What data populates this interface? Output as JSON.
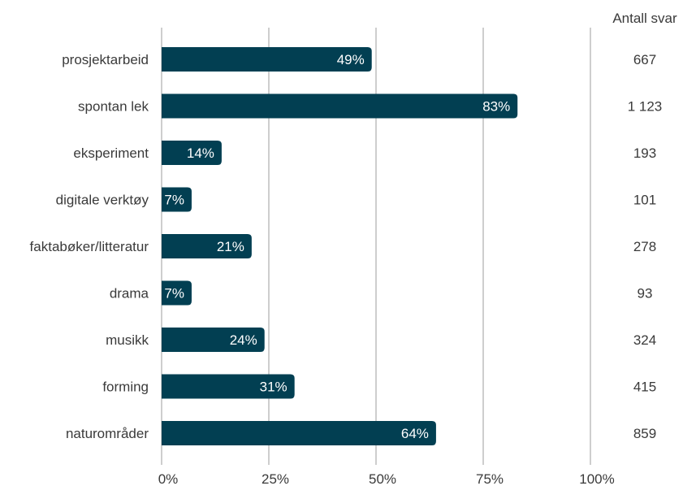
{
  "chart_data": {
    "type": "bar",
    "orientation": "horizontal",
    "categories": [
      "prosjektarbeid",
      "spontan lek",
      "eksperiment",
      "digitale verktøy",
      "faktabøker/litteratur",
      "drama",
      "musikk",
      "forming",
      "naturområder"
    ],
    "values": [
      49,
      83,
      14,
      7,
      21,
      7,
      24,
      31,
      64
    ],
    "value_labels": [
      "49%",
      "83%",
      "14%",
      "7%",
      "21%",
      "7%",
      "24%",
      "31%",
      "64%"
    ],
    "counts": [
      "667",
      "1 123",
      "193",
      "101",
      "278",
      "93",
      "324",
      "415",
      "859"
    ],
    "counts_header": "Antall svar",
    "xticks": [
      "0%",
      "25%",
      "50%",
      "75%",
      "100%"
    ],
    "xlim": [
      0,
      100
    ],
    "grid": true,
    "title": "",
    "xlabel": "",
    "ylabel": "",
    "colors": {
      "bar": "#023f52",
      "grid": "#b3b3b3",
      "text": "#3a3a3a"
    }
  }
}
